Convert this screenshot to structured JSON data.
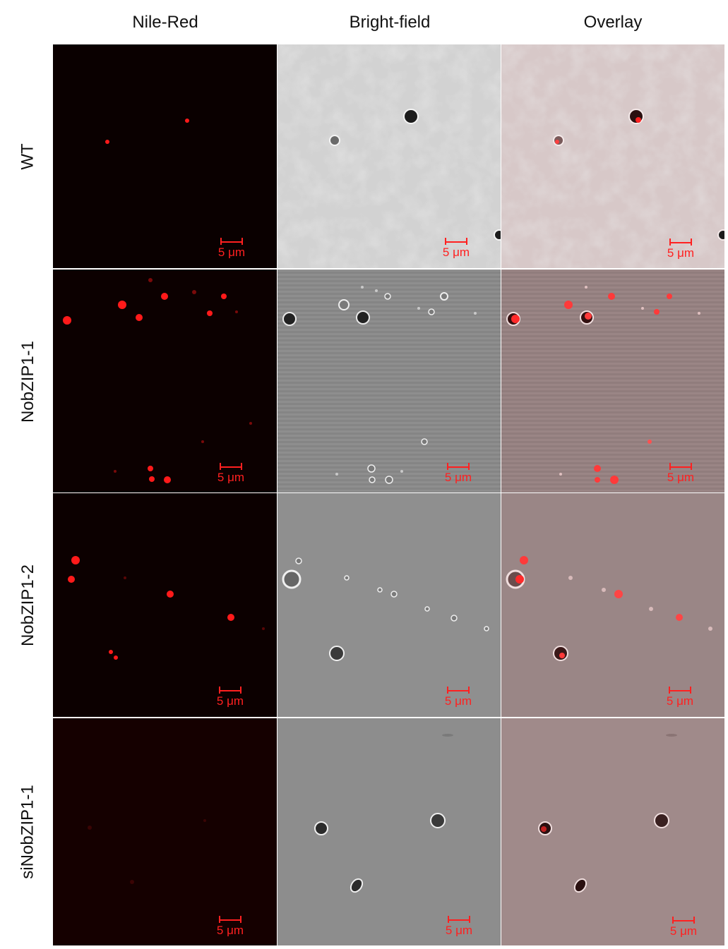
{
  "columns": [
    "Nile-Red",
    "Bright-field",
    "Overlay"
  ],
  "rows": [
    "WT",
    "NobZIP1-1",
    "NobZIP1-2",
    "siNobZIP1-1"
  ],
  "scale_bar_label": "5 μm",
  "colors": {
    "fluorescence_bg": "#0b0000",
    "fluorescence_dim_bg": "#150000",
    "fluor_spot": "#ff1a1a",
    "brightfield_light": "#d4d4d4",
    "brightfield_mid": "#8c8c8c",
    "overlay_tint": "#c7a7a7",
    "scale_bar": "#ff2020"
  }
}
